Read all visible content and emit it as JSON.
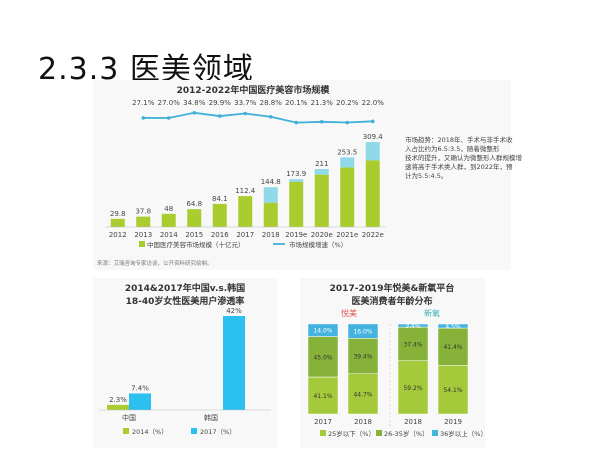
{
  "slide": {
    "title": "2.3.3 医美领域"
  },
  "charts": {
    "market": {
      "title": "2012-2022年中国医疗美容市场规模",
      "categories": [
        "2012",
        "2013",
        "2014",
        "2015",
        "2016",
        "2017",
        "2018",
        "2019e",
        "2020e",
        "2021e",
        "2022e"
      ],
      "bar_values": [
        29.8,
        37.8,
        48.0,
        64.8,
        84.1,
        112.4,
        144.8,
        173.9,
        211.0,
        253.5,
        309.4
      ],
      "growth_values": [
        27.1,
        27.0,
        34.8,
        29.9,
        33.7,
        28.8,
        20.1,
        21.3,
        20.2,
        22.0
      ],
      "growth_labels": [
        "27.1%",
        "27.0%",
        "34.8%",
        "29.9%",
        "33.7%",
        "28.8%",
        "20.1%",
        "21.3%",
        "20.2%",
        "22.0%"
      ],
      "legend_bar": "中国医疗美容市场规模（十亿元）",
      "legend_line": "市场规模增速（%）",
      "note": "市场趋势：2018年、手术与非手术收入占比约为6.5:3.5，随着微整形技术的提升，又确认为微整形人群规模增速将高于手术类人群，到2022年，预计为5.5:4.5。",
      "source": "来源：艾瑞咨询专家访谈，公开资料研究绘制。"
    },
    "penetration": {
      "title": "2014&2017年中国v.s.韩国",
      "subtitle": "18-40岁女性医美用户渗透率",
      "categories": [
        "中国",
        "韩国"
      ],
      "series_2014": {
        "name": "2014（%）",
        "values": [
          2.3,
          null
        ]
      },
      "series_2017": {
        "name": "2017（%）",
        "values": [
          7.4,
          42
        ]
      },
      "labels_2014": [
        "2.3%",
        ""
      ],
      "labels_2017": [
        "7.4%",
        "42%"
      ]
    },
    "age": {
      "title": "2017-2019年悦美&新氧平台",
      "subtitle": "医美消费者年龄分布",
      "platforms": [
        "悦美",
        "新氧"
      ],
      "categories": [
        "2017",
        "2018",
        "2018",
        "2019"
      ],
      "series": [
        {
          "name": "25岁以下（%）",
          "values": [
            41.1,
            44.7,
            59.2,
            54.1
          ],
          "labels": [
            "41.1%",
            "44.7%",
            "59.2%",
            "54.1%"
          ]
        },
        {
          "name": "26-35岁（%）",
          "values": [
            45.0,
            39.4,
            37.4,
            41.4
          ],
          "labels": [
            "45.0%",
            "39.4%",
            "37.4%",
            "41.4%"
          ]
        },
        {
          "name": "36岁以上（%）",
          "values": [
            14.0,
            16.0,
            3.4,
            4.5
          ],
          "labels": [
            "14.0%",
            "16.0%",
            "3.4%",
            "4.5%"
          ]
        }
      ]
    }
  },
  "colors": {
    "green": "#a9cc2f",
    "cyan": "#8fd9e8",
    "line": "#3fb0d8",
    "blue2017": "#2cc0f0",
    "age_under25": "#a4c93a",
    "age_26_35": "#86b23a",
    "age_36plus": "#45b3e0",
    "yuemei": "#e05050",
    "xinyang": "#3ab0b0"
  }
}
